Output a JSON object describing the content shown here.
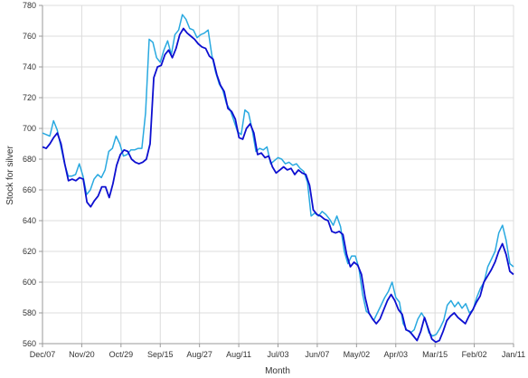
{
  "chart_data": {
    "type": "line",
    "title": "",
    "xlabel": "Month",
    "ylabel": "Stock for silver",
    "ylim": [
      560,
      780
    ],
    "yticks": [
      560,
      580,
      600,
      620,
      640,
      660,
      680,
      700,
      720,
      740,
      760,
      780
    ],
    "x_index_range": [
      0,
      150
    ],
    "xticks": [
      {
        "i": 0,
        "label": "Dec/07"
      },
      {
        "i": 12.5,
        "label": "Nov/20"
      },
      {
        "i": 25,
        "label": "Oct/29"
      },
      {
        "i": 37.5,
        "label": "Sep/15"
      },
      {
        "i": 50,
        "label": "Aug/27"
      },
      {
        "i": 62.5,
        "label": "Aug/11"
      },
      {
        "i": 75,
        "label": "Jul/03"
      },
      {
        "i": 87.5,
        "label": "Jun/07"
      },
      {
        "i": 100,
        "label": "May/02"
      },
      {
        "i": 112.5,
        "label": "Apr/03"
      },
      {
        "i": 125,
        "label": "Mar/15"
      },
      {
        "i": 137.5,
        "label": "Feb/02"
      },
      {
        "i": 150,
        "label": "Jan/11"
      }
    ],
    "grid": true,
    "series": [
      {
        "name": "series-light",
        "color": "#29a9e0",
        "values": [
          697,
          696,
          695,
          705,
          699,
          688,
          677,
          669,
          669,
          670,
          677,
          669,
          657,
          660,
          667,
          670,
          668,
          673,
          685,
          687,
          695,
          690,
          682,
          683,
          686,
          686,
          687,
          687,
          710,
          758,
          756,
          746,
          743,
          751,
          757,
          748,
          761,
          764,
          774,
          771,
          765,
          764,
          759,
          761,
          762,
          764,
          748,
          737,
          729,
          725,
          716,
          712,
          705,
          698,
          696,
          712,
          710,
          699,
          685,
          687,
          686,
          688,
          677,
          679,
          681,
          680,
          677,
          678,
          676,
          677,
          674,
          672,
          665,
          643,
          645,
          643,
          646,
          644,
          641,
          637,
          643,
          636,
          620,
          612,
          617,
          617,
          609,
          592,
          581,
          579,
          575,
          580,
          585,
          590,
          594,
          600,
          590,
          587,
          573,
          569,
          567,
          569,
          576,
          580,
          576,
          567,
          565,
          566,
          570,
          575,
          585,
          588,
          584,
          587,
          583,
          586,
          580,
          582,
          590,
          596,
          600,
          610,
          615,
          620,
          632,
          637,
          627,
          612,
          610
        ],
        "series_index_offset": 0
      },
      {
        "name": "series-dark",
        "color": "#0d0fd0",
        "values": [
          688,
          687,
          690,
          694,
          697,
          690,
          677,
          666,
          667,
          666,
          668,
          667,
          652,
          649,
          653,
          656,
          662,
          662,
          655,
          664,
          676,
          683,
          686,
          685,
          680,
          678,
          677,
          678,
          680,
          690,
          733,
          740,
          741,
          748,
          751,
          746,
          752,
          761,
          765,
          762,
          760,
          758,
          755,
          753,
          752,
          747,
          745,
          735,
          728,
          724,
          713,
          711,
          706,
          694,
          693,
          700,
          703,
          697,
          683,
          684,
          681,
          682,
          675,
          671,
          673,
          675,
          673,
          674,
          670,
          673,
          671,
          670,
          663,
          647,
          644,
          643,
          641,
          640,
          633,
          632,
          633,
          631,
          618,
          610,
          613,
          611,
          605,
          590,
          580,
          576,
          573,
          576,
          582,
          588,
          592,
          588,
          582,
          579,
          569,
          568,
          565,
          562,
          568,
          577,
          570,
          563,
          561,
          562,
          568,
          575,
          578,
          580,
          577,
          575,
          573,
          578,
          582,
          587,
          591,
          600,
          604,
          608,
          613,
          620,
          625,
          618,
          607,
          605
        ],
        "series_index_offset": 0
      }
    ]
  }
}
